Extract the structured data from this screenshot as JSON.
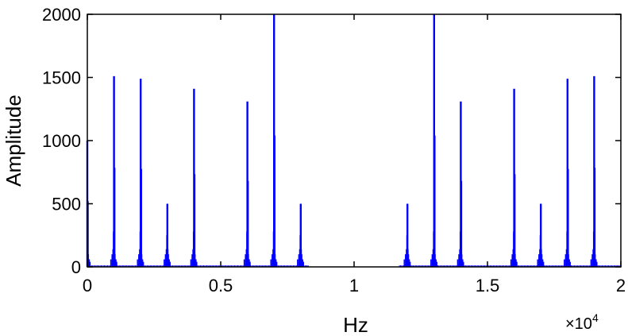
{
  "chart_data": {
    "type": "line",
    "title": "",
    "xlabel": "Hz",
    "ylabel": "Amplitude",
    "x_multiplier": {
      "base": "×10",
      "exponent": "4"
    },
    "xlim": [
      0,
      2
    ],
    "ylim": [
      0,
      2000
    ],
    "x_ticks": [
      0,
      0.5,
      1,
      1.5,
      2
    ],
    "x_tick_labels": [
      "0",
      "0.5",
      "1",
      "1.5",
      "2"
    ],
    "y_ticks": [
      0,
      500,
      1000,
      1500,
      2000
    ],
    "y_tick_labels": [
      "0",
      "500",
      "1000",
      "1500",
      "2000"
    ],
    "grid": false,
    "legend": "none",
    "line_color": "#0000ff",
    "series": [
      {
        "peaks": [
          {
            "x": 0.0,
            "y": 1000
          },
          {
            "x": 0.1,
            "y": 1510
          },
          {
            "x": 0.2,
            "y": 1490
          },
          {
            "x": 0.3,
            "y": 500
          },
          {
            "x": 0.4,
            "y": 1410
          },
          {
            "x": 0.6,
            "y": 1310
          },
          {
            "x": 0.7,
            "y": 2000
          },
          {
            "x": 0.8,
            "y": 500
          },
          {
            "x": 1.2,
            "y": 500
          },
          {
            "x": 1.3,
            "y": 2000
          },
          {
            "x": 1.4,
            "y": 1310
          },
          {
            "x": 1.6,
            "y": 1410
          },
          {
            "x": 1.7,
            "y": 500
          },
          {
            "x": 1.8,
            "y": 1490
          },
          {
            "x": 1.9,
            "y": 1510
          }
        ]
      }
    ]
  }
}
